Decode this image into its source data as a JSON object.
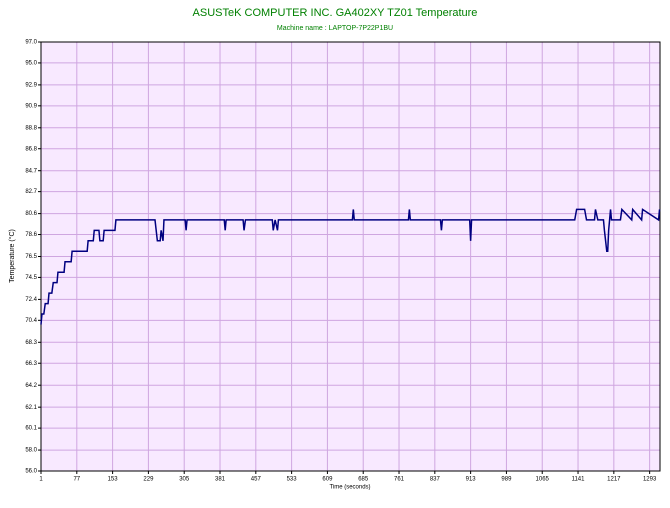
{
  "chart_data": {
    "type": "line",
    "title": "ASUSTeK COMPUTER INC. GA402XY TZ01 Temperature",
    "subtitle": "Machine name : LAPTOP-7P22P1BU",
    "x_label": "Time (seconds)",
    "y_label": "Temperature (°C)",
    "xlim": [
      1,
      1315
    ],
    "ylim": [
      56,
      97
    ],
    "xticks": [
      1,
      77,
      153,
      229,
      305,
      381,
      457,
      533,
      609,
      685,
      761,
      837,
      913,
      989,
      1065,
      1141,
      1217,
      1293
    ],
    "yticks": [
      {
        "value": 97,
        "label": "97.0"
      },
      {
        "value": 95,
        "label": "95.0"
      },
      92.9,
      90.9,
      88.8,
      86.8,
      84.7,
      82.7,
      80.6,
      78.6,
      76.5,
      74.5,
      72.4,
      70.4,
      68.3,
      66.3,
      64.2,
      62.1,
      60.1,
      {
        "value": 58,
        "label": "58.0"
      },
      {
        "value": 56,
        "label": "56.0"
      }
    ],
    "grid": true,
    "background": "#f8e9ff",
    "grid_color": "#cfa6e0",
    "x": [
      1,
      3,
      7,
      10,
      16,
      18,
      24,
      27,
      35,
      37,
      50,
      52,
      65,
      67,
      99,
      101,
      112,
      114,
      124,
      126,
      133,
      135,
      158,
      160,
      243,
      248,
      254,
      256,
      260,
      262,
      307,
      309,
      311,
      390,
      392,
      394,
      430,
      432,
      435,
      492,
      494,
      498,
      503,
      505,
      662,
      664,
      666,
      781,
      783,
      785,
      849,
      851,
      853,
      911,
      913,
      915,
      1134,
      1138,
      1155,
      1159,
      1176,
      1178,
      1183,
      1195,
      1197,
      1202,
      1204,
      1206,
      1210,
      1212,
      1231,
      1234,
      1255,
      1257,
      1276,
      1278,
      1312,
      1314
    ],
    "series": [
      {
        "name": "TZ01",
        "color": "#000080",
        "values": [
          70,
          71,
          71,
          72,
          72,
          73,
          73,
          74,
          74,
          75,
          75,
          76,
          76,
          77,
          77,
          78,
          78,
          79,
          79,
          78,
          78,
          79,
          79,
          80,
          80,
          78,
          78,
          79,
          78,
          80,
          80,
          79,
          80,
          80,
          79,
          80,
          80,
          79,
          80,
          80,
          79,
          80,
          79,
          80,
          80,
          81,
          80,
          80,
          81,
          80,
          80,
          79,
          80,
          80,
          78,
          80,
          80,
          81,
          81,
          80,
          80,
          81,
          80,
          80,
          79,
          77,
          77,
          79,
          81,
          80,
          80,
          81,
          80,
          81,
          80,
          81,
          80,
          81
        ]
      }
    ]
  }
}
